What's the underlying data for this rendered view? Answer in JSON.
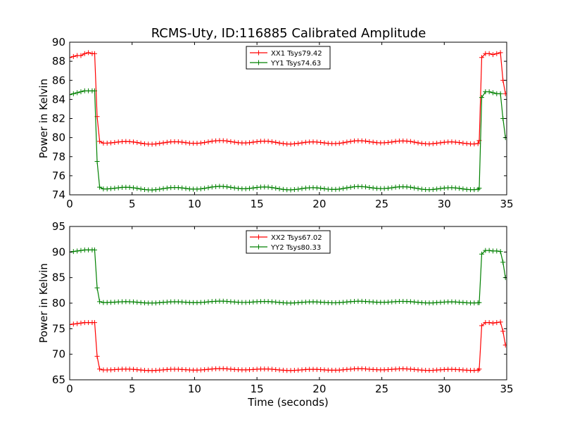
{
  "title": "RCMS-Uty, ID:116885 Calibrated Amplitude",
  "colors": {
    "xx": "#ff0000",
    "yy": "#008000",
    "axis": "#000000",
    "background": "#ffffff"
  },
  "chart_data": [
    {
      "type": "line",
      "ylabel": "Power in Kelvin",
      "xlabel": "",
      "xlim": [
        0,
        35
      ],
      "ylim": [
        74,
        90
      ],
      "xticks": [
        0,
        5,
        10,
        15,
        20,
        25,
        30,
        35
      ],
      "yticks": [
        74,
        76,
        78,
        80,
        82,
        84,
        86,
        88,
        90
      ],
      "legend_position": "top-center",
      "grid": false,
      "series": [
        {
          "name": "XX1 Tsys79.42",
          "color": "#ff0000",
          "marker": "+",
          "points": [
            [
              0.0,
              88.4
            ],
            [
              0.3,
              88.5
            ],
            [
              0.6,
              88.6
            ],
            [
              0.9,
              88.6
            ],
            [
              1.2,
              88.8
            ],
            [
              1.5,
              88.9
            ],
            [
              1.8,
              88.8
            ],
            [
              2.0,
              88.8
            ],
            [
              2.2,
              82.2
            ],
            [
              2.4,
              79.6
            ],
            [
              32.8,
              79.7
            ],
            [
              33.0,
              88.4
            ],
            [
              33.3,
              88.8
            ],
            [
              33.6,
              88.8
            ],
            [
              33.9,
              88.7
            ],
            [
              34.2,
              88.8
            ],
            [
              34.5,
              88.9
            ],
            [
              34.7,
              86.0
            ],
            [
              34.9,
              84.6
            ]
          ],
          "plateau": {
            "from": 2.4,
            "to": 32.8,
            "base": 79.5,
            "amp": 0.12
          }
        },
        {
          "name": "YY1 Tsys74.63",
          "color": "#008000",
          "marker": "+",
          "points": [
            [
              0.0,
              84.5
            ],
            [
              0.3,
              84.6
            ],
            [
              0.6,
              84.7
            ],
            [
              0.9,
              84.8
            ],
            [
              1.2,
              84.9
            ],
            [
              1.5,
              84.9
            ],
            [
              1.8,
              84.9
            ],
            [
              2.0,
              84.9
            ],
            [
              2.2,
              77.5
            ],
            [
              2.4,
              74.8
            ],
            [
              32.8,
              74.7
            ],
            [
              33.0,
              84.2
            ],
            [
              33.3,
              84.8
            ],
            [
              33.6,
              84.8
            ],
            [
              33.9,
              84.7
            ],
            [
              34.2,
              84.6
            ],
            [
              34.5,
              84.6
            ],
            [
              34.7,
              82.0
            ],
            [
              34.9,
              80.0
            ]
          ],
          "plateau": {
            "from": 2.4,
            "to": 32.8,
            "base": 74.7,
            "amp": 0.12
          }
        }
      ]
    },
    {
      "type": "line",
      "ylabel": "Power in Kelvin",
      "xlabel": "Time (seconds)",
      "xlim": [
        0,
        35
      ],
      "ylim": [
        65,
        95
      ],
      "xticks": [
        0,
        5,
        10,
        15,
        20,
        25,
        30,
        35
      ],
      "yticks": [
        65,
        70,
        75,
        80,
        85,
        90,
        95
      ],
      "legend_position": "top-center",
      "grid": false,
      "series": [
        {
          "name": "XX2 Tsys67.02",
          "color": "#ff0000",
          "marker": "+",
          "points": [
            [
              0.0,
              75.8
            ],
            [
              0.3,
              75.9
            ],
            [
              0.6,
              76.0
            ],
            [
              0.9,
              76.1
            ],
            [
              1.2,
              76.2
            ],
            [
              1.5,
              76.2
            ],
            [
              1.8,
              76.2
            ],
            [
              2.0,
              76.2
            ],
            [
              2.2,
              69.6
            ],
            [
              2.4,
              67.1
            ],
            [
              32.8,
              67.1
            ],
            [
              33.0,
              75.6
            ],
            [
              33.3,
              76.2
            ],
            [
              33.6,
              76.2
            ],
            [
              33.9,
              76.1
            ],
            [
              34.2,
              76.2
            ],
            [
              34.5,
              76.3
            ],
            [
              34.7,
              74.5
            ],
            [
              34.9,
              71.8
            ]
          ],
          "plateau": {
            "from": 2.4,
            "to": 32.8,
            "base": 67.0,
            "amp": 0.12
          }
        },
        {
          "name": "YY2 Tsys80.33",
          "color": "#008000",
          "marker": "+",
          "points": [
            [
              0.0,
              90.0
            ],
            [
              0.3,
              90.1
            ],
            [
              0.6,
              90.2
            ],
            [
              0.9,
              90.3
            ],
            [
              1.2,
              90.4
            ],
            [
              1.5,
              90.4
            ],
            [
              1.8,
              90.4
            ],
            [
              2.0,
              90.4
            ],
            [
              2.2,
              83.0
            ],
            [
              2.4,
              80.3
            ],
            [
              32.8,
              80.1
            ],
            [
              33.0,
              89.6
            ],
            [
              33.3,
              90.3
            ],
            [
              33.6,
              90.3
            ],
            [
              33.9,
              90.2
            ],
            [
              34.2,
              90.2
            ],
            [
              34.5,
              90.1
            ],
            [
              34.7,
              88.0
            ],
            [
              34.9,
              85.0
            ]
          ],
          "plateau": {
            "from": 2.4,
            "to": 32.8,
            "base": 80.2,
            "amp": 0.12
          }
        }
      ]
    }
  ]
}
